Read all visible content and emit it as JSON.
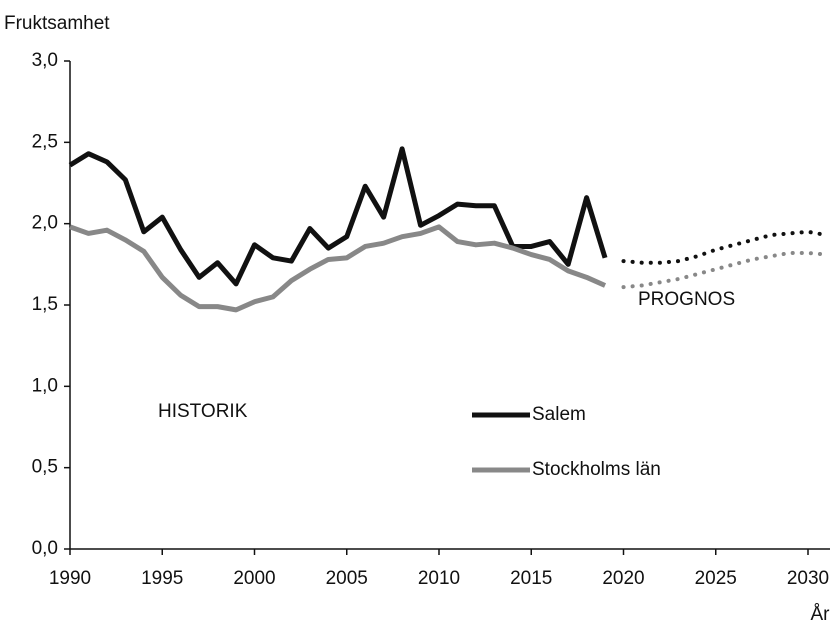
{
  "chart_data": {
    "type": "line",
    "y_label": "Fruktsamhet",
    "x_label": "År",
    "annotations": [
      "HISTORIK",
      "PROGNOS"
    ],
    "x": [
      1990,
      1991,
      1992,
      1993,
      1994,
      1995,
      1996,
      1997,
      1998,
      1999,
      2000,
      2001,
      2002,
      2003,
      2004,
      2005,
      2006,
      2007,
      2008,
      2009,
      2010,
      2011,
      2012,
      2013,
      2014,
      2015,
      2016,
      2017,
      2018,
      2019,
      2020,
      2021,
      2022,
      2023,
      2024,
      2025,
      2026,
      2027,
      2028,
      2029,
      2030,
      2031
    ],
    "series": [
      {
        "name": "Salem",
        "color": "#111111",
        "values": [
          2.36,
          2.43,
          2.38,
          2.27,
          1.95,
          2.04,
          1.84,
          1.67,
          1.76,
          1.63,
          1.87,
          1.79,
          1.77,
          1.97,
          1.85,
          1.92,
          2.23,
          2.04,
          2.46,
          1.99,
          2.05,
          2.12,
          2.11,
          2.11,
          1.86,
          1.86,
          1.89,
          1.75,
          2.16,
          1.79,
          null,
          null,
          null,
          null,
          null,
          null,
          null,
          null,
          null,
          null,
          null,
          null
        ],
        "forecast": [
          null,
          null,
          null,
          null,
          null,
          null,
          null,
          null,
          null,
          null,
          null,
          null,
          null,
          null,
          null,
          null,
          null,
          null,
          null,
          null,
          null,
          null,
          null,
          null,
          null,
          null,
          null,
          null,
          null,
          null,
          1.77,
          1.76,
          1.76,
          1.77,
          1.8,
          1.84,
          1.87,
          1.9,
          1.93,
          1.94,
          1.95,
          1.93
        ]
      },
      {
        "name": "Stockholms län",
        "color": "#888888",
        "values": [
          1.98,
          1.94,
          1.96,
          1.9,
          1.83,
          1.67,
          1.56,
          1.49,
          1.49,
          1.47,
          1.52,
          1.55,
          1.65,
          1.72,
          1.78,
          1.79,
          1.86,
          1.88,
          1.92,
          1.94,
          1.98,
          1.89,
          1.87,
          1.88,
          1.85,
          1.81,
          1.78,
          1.71,
          1.67,
          1.62,
          null,
          null,
          null,
          null,
          null,
          null,
          null,
          null,
          null,
          null,
          null,
          null
        ],
        "forecast": [
          null,
          null,
          null,
          null,
          null,
          null,
          null,
          null,
          null,
          null,
          null,
          null,
          null,
          null,
          null,
          null,
          null,
          null,
          null,
          null,
          null,
          null,
          null,
          null,
          null,
          null,
          null,
          null,
          null,
          null,
          1.61,
          1.62,
          1.64,
          1.66,
          1.69,
          1.72,
          1.75,
          1.78,
          1.8,
          1.82,
          1.82,
          1.81
        ]
      }
    ],
    "xlim": [
      1990,
      2031
    ],
    "xticks": [
      1990,
      1995,
      2000,
      2005,
      2010,
      2015,
      2020,
      2025,
      2030
    ],
    "ylim": [
      0,
      3
    ],
    "yticks": [
      {
        "value": 0,
        "label": "0,0"
      },
      {
        "value": 0.5,
        "label": "0,5"
      },
      {
        "value": 1,
        "label": "1,0"
      },
      {
        "value": 1.5,
        "label": "1,5"
      },
      {
        "value": 2,
        "label": "2,0"
      },
      {
        "value": 2.5,
        "label": "2,5"
      },
      {
        "value": 3,
        "label": "3,0"
      }
    ],
    "grid": false
  }
}
